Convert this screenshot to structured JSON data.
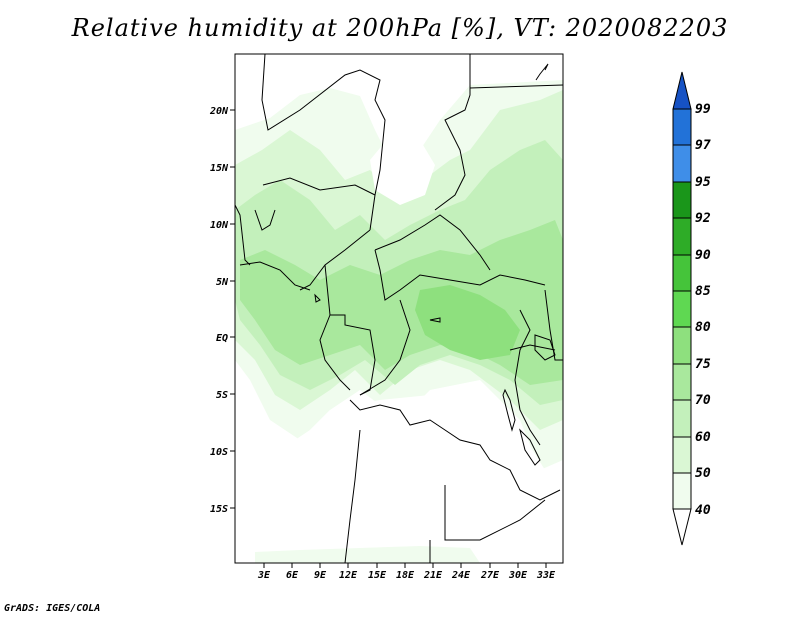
{
  "title": "Relative humidity at 200hPa [%], VT: 2020082203",
  "footer": "GrADS: IGES/COLA",
  "colors": {
    "c40": "#f0fcee",
    "c50": "#daf7d4",
    "c60": "#c3f0bb",
    "c70": "#a9e89d",
    "c75": "#8ee07e",
    "c80": "#5fd852",
    "c85": "#45c43a",
    "c90": "#2eac27",
    "c92": "#1a961a",
    "c95": "#3f8ee8",
    "c97": "#2272d8",
    "c99": "#1652c4"
  },
  "map": {
    "lat_labels": [
      "20N",
      "15N",
      "10N",
      "5N",
      "EQ",
      "5S",
      "10S",
      "15S"
    ],
    "lon_labels": [
      "3E",
      "6E",
      "9E",
      "12E",
      "15E",
      "18E",
      "21E",
      "24E",
      "27E",
      "30E",
      "33E"
    ]
  },
  "colorbar": {
    "labels": [
      "40",
      "50",
      "60",
      "70",
      "75",
      "80",
      "85",
      "90",
      "92",
      "95",
      "97",
      "99"
    ]
  }
}
